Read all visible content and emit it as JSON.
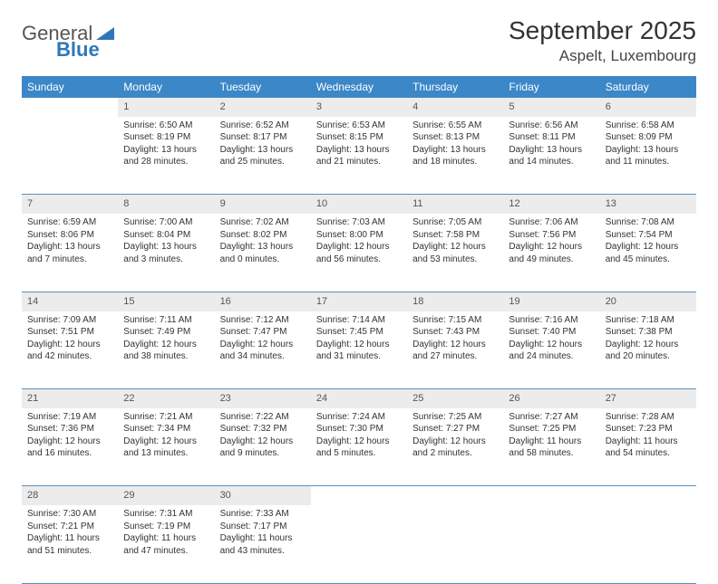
{
  "brand": {
    "part1": "General",
    "part2": "Blue"
  },
  "title": "September 2025",
  "location": "Aspelt, Luxembourg",
  "colors": {
    "header_bg": "#3b87c8",
    "header_text": "#ffffff",
    "daynum_bg": "#ececec",
    "row_border": "#5b90bb",
    "brand_blue": "#2f78b7",
    "text": "#333333"
  },
  "typography": {
    "title_fontsize": 28,
    "location_fontsize": 17,
    "header_fontsize": 12,
    "body_fontsize": 10
  },
  "day_headers": [
    "Sunday",
    "Monday",
    "Tuesday",
    "Wednesday",
    "Thursday",
    "Friday",
    "Saturday"
  ],
  "weeks": [
    {
      "nums": [
        "",
        "1",
        "2",
        "3",
        "4",
        "5",
        "6"
      ],
      "cells": [
        null,
        {
          "sunrise": "Sunrise: 6:50 AM",
          "sunset": "Sunset: 8:19 PM",
          "day1": "Daylight: 13 hours",
          "day2": "and 28 minutes."
        },
        {
          "sunrise": "Sunrise: 6:52 AM",
          "sunset": "Sunset: 8:17 PM",
          "day1": "Daylight: 13 hours",
          "day2": "and 25 minutes."
        },
        {
          "sunrise": "Sunrise: 6:53 AM",
          "sunset": "Sunset: 8:15 PM",
          "day1": "Daylight: 13 hours",
          "day2": "and 21 minutes."
        },
        {
          "sunrise": "Sunrise: 6:55 AM",
          "sunset": "Sunset: 8:13 PM",
          "day1": "Daylight: 13 hours",
          "day2": "and 18 minutes."
        },
        {
          "sunrise": "Sunrise: 6:56 AM",
          "sunset": "Sunset: 8:11 PM",
          "day1": "Daylight: 13 hours",
          "day2": "and 14 minutes."
        },
        {
          "sunrise": "Sunrise: 6:58 AM",
          "sunset": "Sunset: 8:09 PM",
          "day1": "Daylight: 13 hours",
          "day2": "and 11 minutes."
        }
      ]
    },
    {
      "nums": [
        "7",
        "8",
        "9",
        "10",
        "11",
        "12",
        "13"
      ],
      "cells": [
        {
          "sunrise": "Sunrise: 6:59 AM",
          "sunset": "Sunset: 8:06 PM",
          "day1": "Daylight: 13 hours",
          "day2": "and 7 minutes."
        },
        {
          "sunrise": "Sunrise: 7:00 AM",
          "sunset": "Sunset: 8:04 PM",
          "day1": "Daylight: 13 hours",
          "day2": "and 3 minutes."
        },
        {
          "sunrise": "Sunrise: 7:02 AM",
          "sunset": "Sunset: 8:02 PM",
          "day1": "Daylight: 13 hours",
          "day2": "and 0 minutes."
        },
        {
          "sunrise": "Sunrise: 7:03 AM",
          "sunset": "Sunset: 8:00 PM",
          "day1": "Daylight: 12 hours",
          "day2": "and 56 minutes."
        },
        {
          "sunrise": "Sunrise: 7:05 AM",
          "sunset": "Sunset: 7:58 PM",
          "day1": "Daylight: 12 hours",
          "day2": "and 53 minutes."
        },
        {
          "sunrise": "Sunrise: 7:06 AM",
          "sunset": "Sunset: 7:56 PM",
          "day1": "Daylight: 12 hours",
          "day2": "and 49 minutes."
        },
        {
          "sunrise": "Sunrise: 7:08 AM",
          "sunset": "Sunset: 7:54 PM",
          "day1": "Daylight: 12 hours",
          "day2": "and 45 minutes."
        }
      ]
    },
    {
      "nums": [
        "14",
        "15",
        "16",
        "17",
        "18",
        "19",
        "20"
      ],
      "cells": [
        {
          "sunrise": "Sunrise: 7:09 AM",
          "sunset": "Sunset: 7:51 PM",
          "day1": "Daylight: 12 hours",
          "day2": "and 42 minutes."
        },
        {
          "sunrise": "Sunrise: 7:11 AM",
          "sunset": "Sunset: 7:49 PM",
          "day1": "Daylight: 12 hours",
          "day2": "and 38 minutes."
        },
        {
          "sunrise": "Sunrise: 7:12 AM",
          "sunset": "Sunset: 7:47 PM",
          "day1": "Daylight: 12 hours",
          "day2": "and 34 minutes."
        },
        {
          "sunrise": "Sunrise: 7:14 AM",
          "sunset": "Sunset: 7:45 PM",
          "day1": "Daylight: 12 hours",
          "day2": "and 31 minutes."
        },
        {
          "sunrise": "Sunrise: 7:15 AM",
          "sunset": "Sunset: 7:43 PM",
          "day1": "Daylight: 12 hours",
          "day2": "and 27 minutes."
        },
        {
          "sunrise": "Sunrise: 7:16 AM",
          "sunset": "Sunset: 7:40 PM",
          "day1": "Daylight: 12 hours",
          "day2": "and 24 minutes."
        },
        {
          "sunrise": "Sunrise: 7:18 AM",
          "sunset": "Sunset: 7:38 PM",
          "day1": "Daylight: 12 hours",
          "day2": "and 20 minutes."
        }
      ]
    },
    {
      "nums": [
        "21",
        "22",
        "23",
        "24",
        "25",
        "26",
        "27"
      ],
      "cells": [
        {
          "sunrise": "Sunrise: 7:19 AM",
          "sunset": "Sunset: 7:36 PM",
          "day1": "Daylight: 12 hours",
          "day2": "and 16 minutes."
        },
        {
          "sunrise": "Sunrise: 7:21 AM",
          "sunset": "Sunset: 7:34 PM",
          "day1": "Daylight: 12 hours",
          "day2": "and 13 minutes."
        },
        {
          "sunrise": "Sunrise: 7:22 AM",
          "sunset": "Sunset: 7:32 PM",
          "day1": "Daylight: 12 hours",
          "day2": "and 9 minutes."
        },
        {
          "sunrise": "Sunrise: 7:24 AM",
          "sunset": "Sunset: 7:30 PM",
          "day1": "Daylight: 12 hours",
          "day2": "and 5 minutes."
        },
        {
          "sunrise": "Sunrise: 7:25 AM",
          "sunset": "Sunset: 7:27 PM",
          "day1": "Daylight: 12 hours",
          "day2": "and 2 minutes."
        },
        {
          "sunrise": "Sunrise: 7:27 AM",
          "sunset": "Sunset: 7:25 PM",
          "day1": "Daylight: 11 hours",
          "day2": "and 58 minutes."
        },
        {
          "sunrise": "Sunrise: 7:28 AM",
          "sunset": "Sunset: 7:23 PM",
          "day1": "Daylight: 11 hours",
          "day2": "and 54 minutes."
        }
      ]
    },
    {
      "nums": [
        "28",
        "29",
        "30",
        "",
        "",
        "",
        ""
      ],
      "cells": [
        {
          "sunrise": "Sunrise: 7:30 AM",
          "sunset": "Sunset: 7:21 PM",
          "day1": "Daylight: 11 hours",
          "day2": "and 51 minutes."
        },
        {
          "sunrise": "Sunrise: 7:31 AM",
          "sunset": "Sunset: 7:19 PM",
          "day1": "Daylight: 11 hours",
          "day2": "and 47 minutes."
        },
        {
          "sunrise": "Sunrise: 7:33 AM",
          "sunset": "Sunset: 7:17 PM",
          "day1": "Daylight: 11 hours",
          "day2": "and 43 minutes."
        },
        null,
        null,
        null,
        null
      ]
    }
  ]
}
